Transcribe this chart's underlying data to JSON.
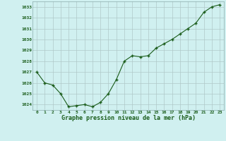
{
  "x": [
    0,
    1,
    2,
    3,
    4,
    5,
    6,
    7,
    8,
    9,
    10,
    11,
    12,
    13,
    14,
    15,
    16,
    17,
    18,
    19,
    20,
    21,
    22,
    23
  ],
  "y": [
    1027.0,
    1026.0,
    1025.8,
    1025.0,
    1023.8,
    1023.9,
    1024.0,
    1023.8,
    1024.2,
    1025.0,
    1026.3,
    1028.0,
    1028.5,
    1028.4,
    1028.5,
    1029.2,
    1029.6,
    1030.0,
    1030.5,
    1031.0,
    1031.5,
    1032.5,
    1033.0,
    1033.2
  ],
  "line_color": "#1a5c1a",
  "marker_color": "#1a5c1a",
  "bg_color": "#d0f0f0",
  "grid_color": "#b0c8c8",
  "xlabel": "Graphe pression niveau de la mer (hPa)",
  "xlabel_color": "#1a5c1a",
  "tick_color": "#1a5c1a",
  "ylim_min": 1023.5,
  "ylim_max": 1033.5,
  "yticks": [
    1024,
    1025,
    1026,
    1027,
    1028,
    1029,
    1030,
    1031,
    1032,
    1033
  ],
  "xticks": [
    0,
    1,
    2,
    3,
    4,
    5,
    6,
    7,
    8,
    9,
    10,
    11,
    12,
    13,
    14,
    15,
    16,
    17,
    18,
    19,
    20,
    21,
    22,
    23
  ]
}
